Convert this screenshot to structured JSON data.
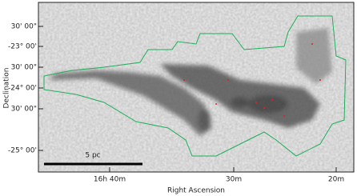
{
  "figure": {
    "y_ticks": [
      "30' 00\"",
      "-23° 00'",
      "30' 00\"",
      "-24° 00'",
      "30' 00\"",
      "-25° 00'"
    ],
    "x_ticks": [
      "16h 40m",
      "30m",
      "20m"
    ],
    "x_axis_label": "Right Ascension",
    "y_axis_label": "Declination",
    "scale_bar_label": "5 pc"
  }
}
